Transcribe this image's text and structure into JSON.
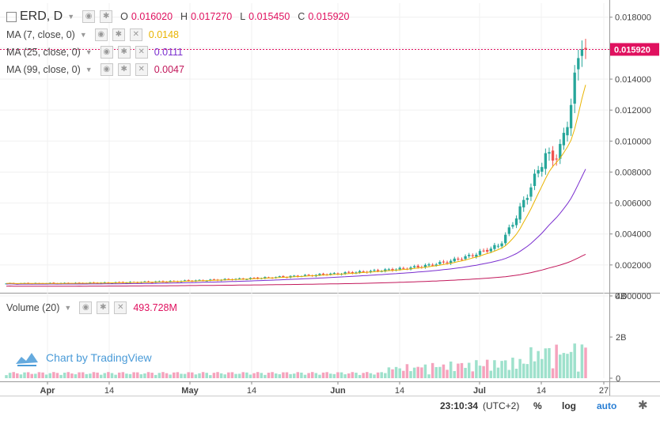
{
  "header": {
    "symbol": "ERD, D",
    "ohlc": [
      {
        "key": "O",
        "value": "0.016020"
      },
      {
        "key": "H",
        "value": "0.017270"
      },
      {
        "key": "L",
        "value": "0.015450"
      },
      {
        "key": "C",
        "value": "0.015920"
      }
    ]
  },
  "indicators": [
    {
      "label": "MA (7, close, 0)",
      "value": "0.0148",
      "color": "#e9b400"
    },
    {
      "label": "MA (25, close, 0)",
      "value": "0.0111",
      "color": "#7a2ecf"
    },
    {
      "label": "MA (99, close, 0)",
      "value": "0.0047",
      "color": "#c2185b"
    }
  ],
  "volume_panel": {
    "label": "Volume (20)",
    "value": "493.728M",
    "value_color": "#e0115f"
  },
  "watermark": "Chart by TradingView",
  "status_bar": {
    "time": "23:10:34",
    "timezone": "(UTC+2)",
    "percent": "%",
    "log": "log",
    "auto": "auto"
  },
  "colors": {
    "up": "#26a69a",
    "down": "#ef5350",
    "vol_up": "#9ee1cc",
    "vol_down": "#f5a3bd",
    "price_tag": "#e0115f"
  },
  "chart_data": {
    "type": "candlestick",
    "price_axis": {
      "ticks": [
        "0.018000",
        "0.016000",
        "0.014000",
        "0.012000",
        "0.010000",
        "0.008000",
        "0.006000",
        "0.004000",
        "0.002000",
        "0.000000"
      ],
      "range": [
        0,
        0.0186
      ]
    },
    "last_price": "0.015920",
    "x_ticks": [
      "Apr",
      "14",
      "May",
      "14",
      "Jun",
      "14",
      "Jul",
      "14",
      "27"
    ],
    "volume_axis": {
      "ticks": [
        "4B",
        "2B",
        "0"
      ],
      "range": [
        0,
        4000000000
      ]
    }
  }
}
